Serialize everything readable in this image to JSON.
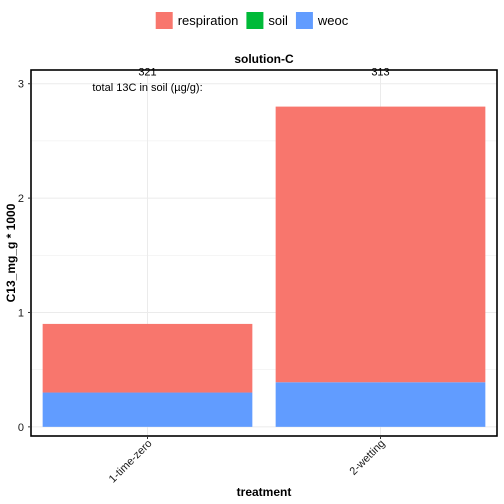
{
  "chart_data": {
    "type": "bar",
    "stacked": true,
    "title": "solution-C",
    "xlabel": "treatment",
    "ylabel": "C13_mg_g * 1000",
    "categories": [
      "1-time-zero",
      "2-wetting"
    ],
    "series": [
      {
        "name": "weoc",
        "color": "#619CFF",
        "values": [
          0.3,
          0.39
        ]
      },
      {
        "name": "soil",
        "color": "#00BA38",
        "values": [
          0,
          0
        ]
      },
      {
        "name": "respiration",
        "color": "#F8766D",
        "values": [
          0.6,
          2.41
        ]
      }
    ],
    "legend_order": [
      "respiration",
      "soil",
      "weoc"
    ],
    "ylim": [
      -0.08,
      3.12
    ],
    "yticks": [
      0,
      1,
      2,
      3
    ],
    "grid": true,
    "legend_position": "top",
    "annotation_label": "total 13C in soil (µg/g):",
    "annotations": [
      {
        "category": "1-time-zero",
        "text": "321",
        "y": 3.0
      },
      {
        "category": "2-wetting",
        "text": "313",
        "y": 3.0
      }
    ]
  }
}
